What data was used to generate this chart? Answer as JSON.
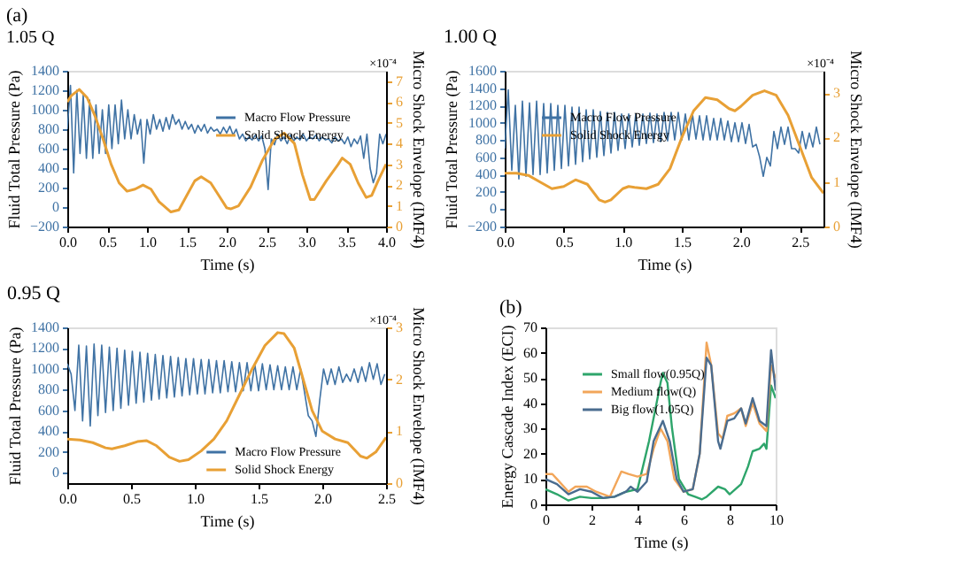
{
  "chart_data": [
    {
      "type": "line",
      "title": "(a)",
      "subtitle": "1.05 Q",
      "xlabel": "Time (s)",
      "ylabel": "Fluid Total Pressure (Pa)",
      "y2label": "Micro Shock Envelope (IMF4)",
      "annotations": [
        "×10⁻⁴"
      ],
      "xlim": [
        0,
        4
      ],
      "xticks": [
        {
          "value": 0,
          "label": "0.0"
        },
        {
          "value": 0.5,
          "label": "0.5"
        },
        {
          "value": 1,
          "label": "1.0"
        },
        {
          "value": 1.5,
          "label": "1.5"
        },
        {
          "value": 2,
          "label": "2.0"
        },
        {
          "value": 2.5,
          "label": "2.5"
        },
        {
          "value": 3,
          "label": "3.0"
        },
        {
          "value": 3.5,
          "label": "3.5"
        },
        {
          "value": 4,
          "label": "4.0"
        }
      ],
      "ylim": [
        -200,
        1400
      ],
      "yticks": [
        -200,
        0,
        200,
        400,
        600,
        800,
        1000,
        1200,
        1400
      ],
      "y2lim": [
        0,
        7.5
      ],
      "y2ticks": [
        0,
        1,
        2,
        3,
        4,
        5,
        6,
        7
      ],
      "legend": "top right",
      "grid": false,
      "series": [
        {
          "name": "Macro Flow Pressure",
          "color": "#3f72a4",
          "x": [
            0,
            0.04,
            0.08,
            0.12,
            0.16,
            0.2,
            0.24,
            0.28,
            0.32,
            0.36,
            0.4,
            0.44,
            0.48,
            0.52,
            0.56,
            0.6,
            0.64,
            0.68,
            0.72,
            0.76,
            0.8,
            0.84,
            0.88,
            0.92,
            0.96,
            1,
            1.04,
            1.08,
            1.12,
            1.16,
            1.2,
            1.24,
            1.28,
            1.32,
            1.36,
            1.4,
            1.44,
            1.48,
            1.52,
            1.56,
            1.6,
            1.64,
            1.68,
            1.72,
            1.76,
            1.8,
            1.84,
            1.88,
            1.92,
            1.96,
            2,
            2.04,
            2.08,
            2.12,
            2.16,
            2.2,
            2.24,
            2.28,
            2.32,
            2.36,
            2.4,
            2.44,
            2.48,
            2.52,
            2.56,
            2.6,
            2.64,
            2.68,
            2.72,
            2.76,
            2.8,
            2.84,
            2.88,
            2.92,
            2.96,
            3,
            3.04,
            3.08,
            3.12,
            3.16,
            3.2,
            3.24,
            3.28,
            3.32,
            3.36,
            3.4,
            3.44,
            3.48,
            3.52,
            3.56,
            3.6,
            3.64,
            3.68,
            3.72,
            3.76,
            3.8,
            3.84,
            3.88,
            3.92,
            3.96,
            4
          ],
          "values": [
            800,
            1250,
            350,
            1200,
            550,
            1150,
            500,
            1100,
            500,
            1050,
            550,
            1000,
            550,
            1050,
            600,
            1050,
            650,
            1100,
            700,
            1000,
            700,
            950,
            750,
            900,
            450,
            900,
            750,
            950,
            800,
            900,
            780,
            920,
            800,
            950,
            850,
            900,
            800,
            880,
            800,
            850,
            760,
            840,
            780,
            850,
            760,
            820,
            780,
            800,
            750,
            820,
            760,
            830,
            740,
            800,
            700,
            750,
            680,
            720,
            690,
            740,
            680,
            730,
            600,
            180,
            700,
            640,
            750,
            680,
            720,
            650,
            740,
            680,
            720,
            690,
            750,
            680,
            720,
            700,
            740,
            680,
            720,
            690,
            700,
            660,
            720,
            680,
            700,
            650,
            720,
            620,
            700,
            650,
            730,
            500,
            750,
            400,
            250,
            350,
            750,
            650,
            750
          ]
        },
        {
          "name": "Solid Shock Energy",
          "color": "#e8a035",
          "axis": "y2",
          "x": [
            0,
            0.05,
            0.15,
            0.25,
            0.35,
            0.45,
            0.55,
            0.65,
            0.75,
            0.85,
            0.95,
            1.05,
            1.15,
            1.3,
            1.4,
            1.5,
            1.6,
            1.68,
            1.8,
            1.9,
            2,
            2.05,
            2.15,
            2.3,
            2.45,
            2.6,
            2.72,
            2.85,
            2.95,
            3.05,
            3.1,
            3.25,
            3.4,
            3.45,
            3.55,
            3.65,
            3.75,
            3.82,
            3.9,
            4
          ],
          "values": [
            6.0,
            6.3,
            6.6,
            6.2,
            5.3,
            4.2,
            3.0,
            2.1,
            1.7,
            1.8,
            2.0,
            1.8,
            1.2,
            0.7,
            0.8,
            1.5,
            2.2,
            2.4,
            2.1,
            1.5,
            0.9,
            0.85,
            1.0,
            1.9,
            3.2,
            4.2,
            4.5,
            4.0,
            2.5,
            1.3,
            1.3,
            2.2,
            3.0,
            3.3,
            3.0,
            2.1,
            1.4,
            1.5,
            2.2,
            3.0
          ]
        }
      ]
    },
    {
      "type": "line",
      "title": "1.00 Q",
      "xlabel": "Time (s)",
      "ylabel": "Fluid Total Pressure (Pa)",
      "y2label": "Micro Shock Envelope (IMF4)",
      "annotations": [
        "×10⁻⁴"
      ],
      "xlim": [
        0,
        2.7
      ],
      "xticks": [
        {
          "value": 0,
          "label": "0.0"
        },
        {
          "value": 0.5,
          "label": "0.5"
        },
        {
          "value": 1,
          "label": "1.0"
        },
        {
          "value": 1.5,
          "label": "1.5"
        },
        {
          "value": 2,
          "label": "2.0"
        },
        {
          "value": 2.5,
          "label": "2.5"
        }
      ],
      "ylim": [
        -200,
        1600
      ],
      "yticks": [
        -200,
        0,
        200,
        400,
        600,
        800,
        1000,
        1200,
        1400,
        1600
      ],
      "y2lim": [
        0,
        3.5
      ],
      "y2ticks": [
        0,
        1,
        2,
        3
      ],
      "legend": "top left",
      "grid": false,
      "series": [
        {
          "name": "Macro Flow Pressure",
          "color": "#3f72a4",
          "x": [
            0,
            0.03,
            0.06,
            0.09,
            0.12,
            0.15,
            0.18,
            0.21,
            0.24,
            0.27,
            0.3,
            0.33,
            0.36,
            0.39,
            0.42,
            0.45,
            0.48,
            0.51,
            0.54,
            0.57,
            0.6,
            0.63,
            0.66,
            0.69,
            0.72,
            0.75,
            0.78,
            0.81,
            0.84,
            0.87,
            0.9,
            0.93,
            0.96,
            0.99,
            1.02,
            1.05,
            1.08,
            1.11,
            1.14,
            1.17,
            1.2,
            1.23,
            1.26,
            1.29,
            1.32,
            1.35,
            1.38,
            1.41,
            1.44,
            1.47,
            1.5,
            1.53,
            1.56,
            1.59,
            1.62,
            1.65,
            1.68,
            1.71,
            1.74,
            1.77,
            1.8,
            1.83,
            1.86,
            1.89,
            1.92,
            1.95,
            1.98,
            2.01,
            2.04,
            2.07,
            2.1,
            2.13,
            2.16,
            2.19,
            2.22,
            2.25,
            2.28,
            2.31,
            2.34,
            2.37,
            2.4,
            2.43,
            2.46,
            2.49,
            2.52,
            2.55,
            2.58,
            2.61,
            2.64,
            2.67
          ],
          "values": [
            700,
            1380,
            450,
            1200,
            350,
            1250,
            380,
            1230,
            400,
            1250,
            400,
            1220,
            420,
            1220,
            450,
            1200,
            470,
            1200,
            500,
            1180,
            520,
            1180,
            550,
            1150,
            580,
            1150,
            600,
            1130,
            620,
            1120,
            650,
            1120,
            680,
            1100,
            700,
            1100,
            720,
            1100,
            740,
            1100,
            760,
            1110,
            770,
            1100,
            780,
            1120,
            790,
            1120,
            800,
            1120,
            800,
            1100,
            800,
            1100,
            810,
            1080,
            800,
            1080,
            800,
            1050,
            800,
            1050,
            800,
            1020,
            780,
            1000,
            780,
            1000,
            760,
            980,
            720,
            750,
            600,
            380,
            600,
            500,
            900,
            700,
            950,
            750,
            950,
            700,
            700,
            650,
            900,
            700,
            880,
            720,
            950,
            750
          ]
        },
        {
          "name": "Solid Shock Energy",
          "color": "#e8a035",
          "axis": "y2",
          "x": [
            0,
            0.1,
            0.2,
            0.3,
            0.4,
            0.5,
            0.6,
            0.7,
            0.8,
            0.85,
            0.9,
            1,
            1.05,
            1.1,
            1.2,
            1.3,
            1.4,
            1.5,
            1.6,
            1.7,
            1.8,
            1.9,
            1.95,
            2,
            2.1,
            2.2,
            2.3,
            2.4,
            2.5,
            2.6,
            2.7
          ],
          "values": [
            1.2,
            1.2,
            1.15,
            1.0,
            0.85,
            0.9,
            1.05,
            0.95,
            0.6,
            0.55,
            0.6,
            0.85,
            0.9,
            0.88,
            0.85,
            0.95,
            1.3,
            2.0,
            2.6,
            2.9,
            2.85,
            2.65,
            2.6,
            2.7,
            2.95,
            3.05,
            2.95,
            2.5,
            1.8,
            1.1,
            0.75
          ]
        }
      ]
    },
    {
      "type": "line",
      "title": "0.95 Q",
      "xlabel": "Time (s)",
      "ylabel": "Fluid Total Pressure (Pa)",
      "y2label": "Micro Shock Envelope (IMF4)",
      "annotations": [
        "×10⁻⁴"
      ],
      "xlim": [
        0,
        2.5
      ],
      "xticks": [
        {
          "value": 0,
          "label": "0.0"
        },
        {
          "value": 0.5,
          "label": "0.5"
        },
        {
          "value": 1,
          "label": "1.0"
        },
        {
          "value": 1.5,
          "label": "1.5"
        },
        {
          "value": 2,
          "label": "2.0"
        },
        {
          "value": 2.5,
          "label": "2.5"
        }
      ],
      "ylim": [
        -100,
        1400
      ],
      "yticks": [
        0,
        200,
        400,
        600,
        800,
        1000,
        1200,
        1400
      ],
      "y2lim": [
        0,
        3
      ],
      "y2ticks": [
        0,
        1,
        2,
        3
      ],
      "legend": "bottom",
      "grid": false,
      "series": [
        {
          "name": "Macro Flow Pressure",
          "color": "#3f72a4",
          "x": [
            0,
            0.03,
            0.06,
            0.09,
            0.12,
            0.15,
            0.18,
            0.21,
            0.24,
            0.27,
            0.3,
            0.33,
            0.36,
            0.39,
            0.42,
            0.45,
            0.48,
            0.51,
            0.54,
            0.57,
            0.6,
            0.63,
            0.66,
            0.69,
            0.72,
            0.75,
            0.78,
            0.81,
            0.84,
            0.87,
            0.9,
            0.93,
            0.96,
            0.99,
            1.02,
            1.05,
            1.08,
            1.11,
            1.14,
            1.17,
            1.2,
            1.23,
            1.26,
            1.29,
            1.32,
            1.35,
            1.38,
            1.41,
            1.44,
            1.47,
            1.5,
            1.53,
            1.56,
            1.59,
            1.62,
            1.65,
            1.68,
            1.71,
            1.74,
            1.77,
            1.8,
            1.83,
            1.86,
            1.89,
            1.92,
            1.95,
            1.98,
            2.01,
            2.04,
            2.07,
            2.1,
            2.13,
            2.16,
            2.19,
            2.22,
            2.25,
            2.28,
            2.31,
            2.34,
            2.37,
            2.4,
            2.43,
            2.46,
            2.49
          ],
          "values": [
            1050,
            950,
            600,
            1230,
            500,
            1220,
            450,
            1240,
            550,
            1230,
            580,
            1210,
            600,
            1200,
            620,
            1180,
            650,
            1170,
            670,
            1160,
            680,
            1150,
            700,
            1140,
            710,
            1130,
            720,
            1120,
            730,
            1110,
            740,
            1100,
            750,
            1100,
            760,
            1090,
            760,
            1090,
            770,
            1080,
            770,
            1080,
            780,
            1070,
            780,
            1060,
            790,
            1060,
            790,
            1050,
            790,
            1050,
            800,
            1040,
            800,
            1030,
            800,
            1020,
            800,
            1020,
            800,
            1000,
            780,
            550,
            500,
            350,
            700,
            1000,
            850,
            1000,
            850,
            1020,
            870,
            950,
            880,
            1000,
            870,
            1020,
            880,
            1060,
            900,
            1050,
            850,
            950
          ]
        },
        {
          "name": "Solid Shock Energy",
          "color": "#e8a035",
          "axis": "y2",
          "x": [
            0,
            0.1,
            0.2,
            0.3,
            0.35,
            0.45,
            0.55,
            0.62,
            0.7,
            0.8,
            0.88,
            0.95,
            1.05,
            1.15,
            1.25,
            1.35,
            1.45,
            1.55,
            1.65,
            1.7,
            1.78,
            1.85,
            1.92,
            2,
            2.1,
            2.2,
            2.3,
            2.35,
            2.42,
            2.5
          ],
          "values": [
            0.85,
            0.83,
            0.78,
            0.68,
            0.66,
            0.72,
            0.8,
            0.82,
            0.72,
            0.5,
            0.42,
            0.45,
            0.62,
            0.85,
            1.2,
            1.7,
            2.2,
            2.65,
            2.9,
            2.88,
            2.6,
            2.0,
            1.4,
            1.0,
            0.85,
            0.78,
            0.52,
            0.48,
            0.6,
            0.88
          ]
        }
      ]
    },
    {
      "type": "line",
      "title": "(b)",
      "xlabel": "Time (s)",
      "ylabel": "Energy Cascade Index (ECI)",
      "xlim": [
        0,
        10
      ],
      "xticks": [
        0,
        2,
        4,
        6,
        8,
        10
      ],
      "ylim": [
        0,
        70
      ],
      "yticks": [
        0,
        10,
        20,
        30,
        40,
        50,
        60,
        70
      ],
      "legend": "top left",
      "grid": false,
      "series": [
        {
          "name": "Small flow(0.95Q)",
          "color": "#2ea56b",
          "x": [
            0,
            0.5,
            1,
            1.5,
            2,
            2.5,
            3,
            3.5,
            4,
            4.5,
            5,
            5.1,
            5.3,
            5.5,
            5.8,
            6.2,
            6.5,
            6.8,
            7,
            7.5,
            7.8,
            8,
            8.5,
            8.8,
            9,
            9.3,
            9.5,
            9.6,
            9.8,
            10
          ],
          "values": [
            6,
            4,
            1.5,
            3,
            2.5,
            2.5,
            3,
            5,
            6,
            25,
            48,
            52,
            48,
            30,
            10,
            4,
            3,
            2,
            3,
            7,
            6,
            4,
            8,
            15,
            21,
            22,
            24,
            22,
            47,
            42
          ]
        },
        {
          "name": "Medium flow(Q)",
          "color": "#f2a65a",
          "x": [
            0,
            0.3,
            0.5,
            1,
            1.3,
            1.8,
            2.2,
            2.8,
            3,
            3.3,
            3.6,
            4,
            4.4,
            4.7,
            5,
            5.3,
            5.6,
            6,
            6.4,
            6.7,
            7,
            7.2,
            7.5,
            7.7,
            7.9,
            8.2,
            8.5,
            8.7,
            9,
            9.3,
            9.6,
            9.8,
            10
          ],
          "values": [
            12,
            12,
            10,
            5,
            7,
            7,
            5,
            3,
            7,
            13,
            12,
            11,
            12,
            22,
            30,
            25,
            10,
            5,
            6,
            20,
            64,
            55,
            28,
            26,
            35,
            36,
            38,
            31,
            40,
            32,
            29,
            55,
            50
          ]
        },
        {
          "name": "Big flow(1.05Q)",
          "color": "#4a6c8f",
          "x": [
            0,
            0.5,
            1,
            1.5,
            2,
            2.5,
            3,
            3.5,
            3.7,
            4,
            4.4,
            4.7,
            5.1,
            5.4,
            5.7,
            6,
            6.4,
            6.7,
            7,
            7.2,
            7.5,
            7.6,
            7.9,
            8.2,
            8.5,
            8.7,
            9,
            9.3,
            9.6,
            9.8,
            10
          ],
          "values": [
            10,
            8,
            4,
            6,
            5,
            2.5,
            3,
            5,
            7,
            5,
            9,
            25,
            33,
            25,
            10,
            5,
            6,
            20,
            58,
            55,
            25,
            22,
            33,
            34,
            38,
            32,
            42,
            33,
            31,
            61,
            45
          ]
        }
      ]
    }
  ]
}
